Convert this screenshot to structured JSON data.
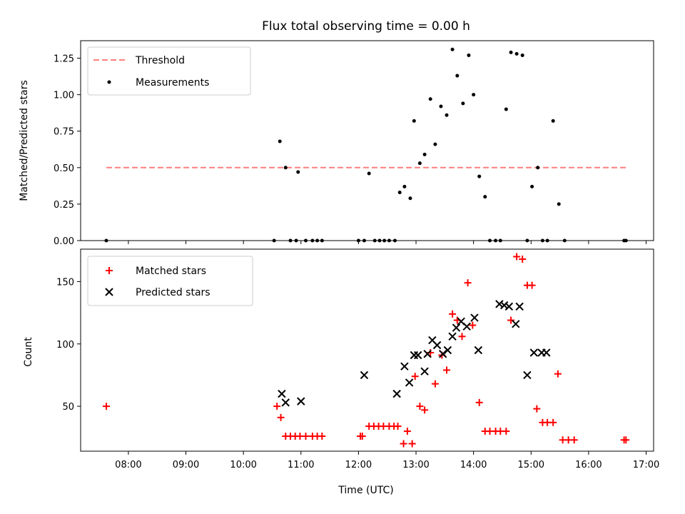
{
  "colors": {
    "threshold": "#ff7f7f",
    "measurements": "#000000",
    "matched": "#ff0000",
    "predicted": "#000000"
  },
  "chart_data": [
    {
      "type": "scatter",
      "title": "Flux total observing time = 0.00 h",
      "ylabel": "Matched/Predicted stars",
      "xlabel": "",
      "ylim": [
        0,
        1.37
      ],
      "xlim_hours": [
        7.17,
        17.13
      ],
      "yticks": [
        "0.00",
        "0.25",
        "0.50",
        "0.75",
        "1.00",
        "1.25"
      ],
      "ytick_values": [
        0,
        0.25,
        0.5,
        0.75,
        1.0,
        1.25
      ],
      "legend": {
        "position": "top-left",
        "entries": [
          "Threshold",
          "Measurements"
        ]
      },
      "threshold": {
        "name": "Threshold",
        "y": 0.5,
        "x_start": "07:37",
        "x_end": "16:39"
      },
      "series": [
        {
          "name": "Measurements",
          "x": [
            "07:37",
            "10:32",
            "10:38",
            "10:44",
            "10:49",
            "10:55",
            "10:57",
            "11:05",
            "11:12",
            "11:17",
            "11:22",
            "12:00",
            "12:06",
            "12:11",
            "12:17",
            "12:22",
            "12:27",
            "12:32",
            "12:38",
            "12:43",
            "12:48",
            "12:54",
            "12:58",
            "13:04",
            "13:09",
            "13:15",
            "13:20",
            "13:26",
            "13:32",
            "13:38",
            "13:43",
            "13:49",
            "13:55",
            "14:00",
            "14:06",
            "14:12",
            "14:17",
            "14:23",
            "14:28",
            "14:34",
            "14:39",
            "14:45",
            "14:51",
            "14:56",
            "15:01",
            "15:07",
            "15:12",
            "15:17",
            "15:23",
            "15:29",
            "15:35",
            "16:37",
            "16:39"
          ],
          "y": [
            0,
            0,
            0.68,
            0.5,
            0,
            0,
            0.47,
            0,
            0,
            0,
            0,
            0,
            0,
            0.46,
            0,
            0,
            0,
            0,
            0,
            0.33,
            0.37,
            0.29,
            0.82,
            0.53,
            0.59,
            0.97,
            0.66,
            0.92,
            0.86,
            1.31,
            1.13,
            0.94,
            1.27,
            1.0,
            0.44,
            0.3,
            0,
            0,
            0,
            0.9,
            1.29,
            1.28,
            1.27,
            0,
            0.37,
            0.5,
            0,
            0,
            0.82,
            0.25,
            0,
            0,
            0
          ]
        }
      ]
    },
    {
      "type": "scatter",
      "title": "",
      "xlabel": "Time (UTC)",
      "ylabel": "Count",
      "ylim": [
        14,
        176
      ],
      "xlim_hours": [
        7.17,
        17.13
      ],
      "yticks": [
        "50",
        "100",
        "150"
      ],
      "ytick_values": [
        50,
        100,
        150
      ],
      "xticks": [
        "08:00",
        "09:00",
        "10:00",
        "11:00",
        "12:00",
        "13:00",
        "14:00",
        "15:00",
        "16:00",
        "17:00"
      ],
      "legend": {
        "position": "top-left",
        "entries": [
          "Matched stars",
          "Predicted stars"
        ]
      },
      "series": [
        {
          "name": "Matched stars",
          "x": [
            "07:37",
            "10:35",
            "10:39",
            "10:44",
            "10:49",
            "10:54",
            "10:59",
            "11:05",
            "11:12",
            "11:17",
            "11:22",
            "12:02",
            "12:04",
            "12:11",
            "12:16",
            "12:21",
            "12:26",
            "12:32",
            "12:37",
            "12:41",
            "12:47",
            "12:51",
            "12:56",
            "12:59",
            "13:04",
            "13:09",
            "13:15",
            "13:20",
            "13:27",
            "13:32",
            "13:38",
            "13:43",
            "13:48",
            "13:54",
            "13:59",
            "14:06",
            "14:12",
            "14:17",
            "14:23",
            "14:28",
            "14:34",
            "14:39",
            "14:45",
            "14:51",
            "14:56",
            "15:01",
            "15:06",
            "15:12",
            "15:17",
            "15:23",
            "15:28",
            "15:33",
            "15:39",
            "15:45",
            "16:37",
            "16:39"
          ],
          "y": [
            50,
            50,
            41,
            26,
            26,
            26,
            26,
            26,
            26,
            26,
            26,
            26,
            26,
            34,
            34,
            34,
            34,
            34,
            34,
            34,
            20,
            30,
            20,
            74,
            50,
            47,
            93,
            68,
            91,
            79,
            124,
            119,
            106,
            149,
            115,
            53,
            30,
            30,
            30,
            30,
            30,
            119,
            170,
            168,
            147,
            147,
            48,
            37,
            37,
            37,
            76,
            23,
            23,
            23,
            23,
            23
          ]
        },
        {
          "name": "Predicted stars",
          "x": [
            "10:40",
            "10:44",
            "11:00",
            "12:06",
            "12:40",
            "12:48",
            "12:53",
            "12:58",
            "13:02",
            "13:09",
            "13:12",
            "13:17",
            "13:22",
            "13:28",
            "13:33",
            "13:38",
            "13:42",
            "13:47",
            "13:53",
            "14:01",
            "14:05",
            "14:27",
            "14:32",
            "14:37",
            "14:44",
            "14:48",
            "14:56",
            "15:03",
            "15:11",
            "15:16"
          ],
          "y": [
            60,
            53,
            54,
            75,
            60,
            82,
            69,
            91,
            91,
            78,
            92,
            103,
            99,
            92,
            95,
            106,
            113,
            118,
            114,
            121,
            95,
            132,
            131,
            130,
            116,
            130,
            75,
            93,
            93,
            93
          ]
        }
      ]
    }
  ]
}
